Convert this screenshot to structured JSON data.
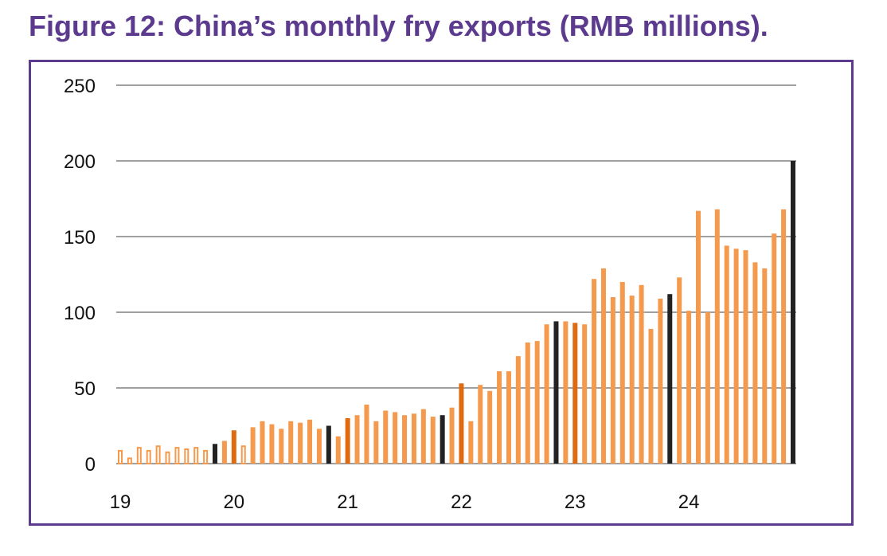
{
  "title": "Figure 12: China’s monthly fry exports (RMB millions).",
  "colors": {
    "title": "#5c3a8e",
    "frame": "#5c3a8e",
    "grid": "#a0a0a0",
    "bar_regular": "#f59a4c",
    "bar_highlight": "#e06a10",
    "bar_december": "#222222"
  },
  "chart_data": {
    "type": "bar",
    "xlabel": "",
    "ylabel": "",
    "ylim": [
      0,
      250
    ],
    "yticks": [
      0,
      50,
      100,
      150,
      200,
      250
    ],
    "grid": true,
    "legend": "none",
    "year_labels": [
      "19",
      "20",
      "21",
      "22",
      "23",
      "24"
    ],
    "values": [
      9,
      4,
      11,
      9,
      12,
      8,
      11,
      10,
      11,
      9,
      13,
      15,
      22,
      12,
      24,
      28,
      26,
      23,
      28,
      27,
      29,
      23,
      25,
      18,
      30,
      32,
      39,
      28,
      35,
      34,
      32,
      33,
      36,
      31,
      32,
      37,
      53,
      28,
      52,
      48,
      61,
      61,
      71,
      80,
      81,
      92,
      94,
      94,
      93,
      92,
      122,
      129,
      110,
      120,
      111,
      118,
      89,
      109,
      112,
      123,
      101,
      167,
      100,
      168,
      144,
      142,
      141,
      133,
      129,
      152,
      168,
      200
    ],
    "bar_styles": [
      "open",
      "open",
      "open",
      "open",
      "open",
      "open",
      "open",
      "open",
      "open",
      "open",
      "december",
      "regular",
      "highlight",
      "open",
      "regular",
      "regular",
      "regular",
      "regular",
      "regular",
      "regular",
      "regular",
      "regular",
      "december",
      "regular",
      "highlight",
      "regular",
      "regular",
      "regular",
      "regular",
      "regular",
      "regular",
      "regular",
      "regular",
      "regular",
      "december",
      "regular",
      "highlight",
      "regular",
      "regular",
      "regular",
      "regular",
      "regular",
      "regular",
      "regular",
      "regular",
      "regular",
      "december",
      "regular",
      "highlight",
      "regular",
      "regular",
      "regular",
      "regular",
      "regular",
      "regular",
      "regular",
      "regular",
      "regular",
      "december",
      "regular",
      "regular",
      "regular",
      "regular",
      "regular",
      "regular",
      "regular",
      "regular",
      "regular",
      "regular",
      "regular",
      "regular",
      "december"
    ]
  }
}
